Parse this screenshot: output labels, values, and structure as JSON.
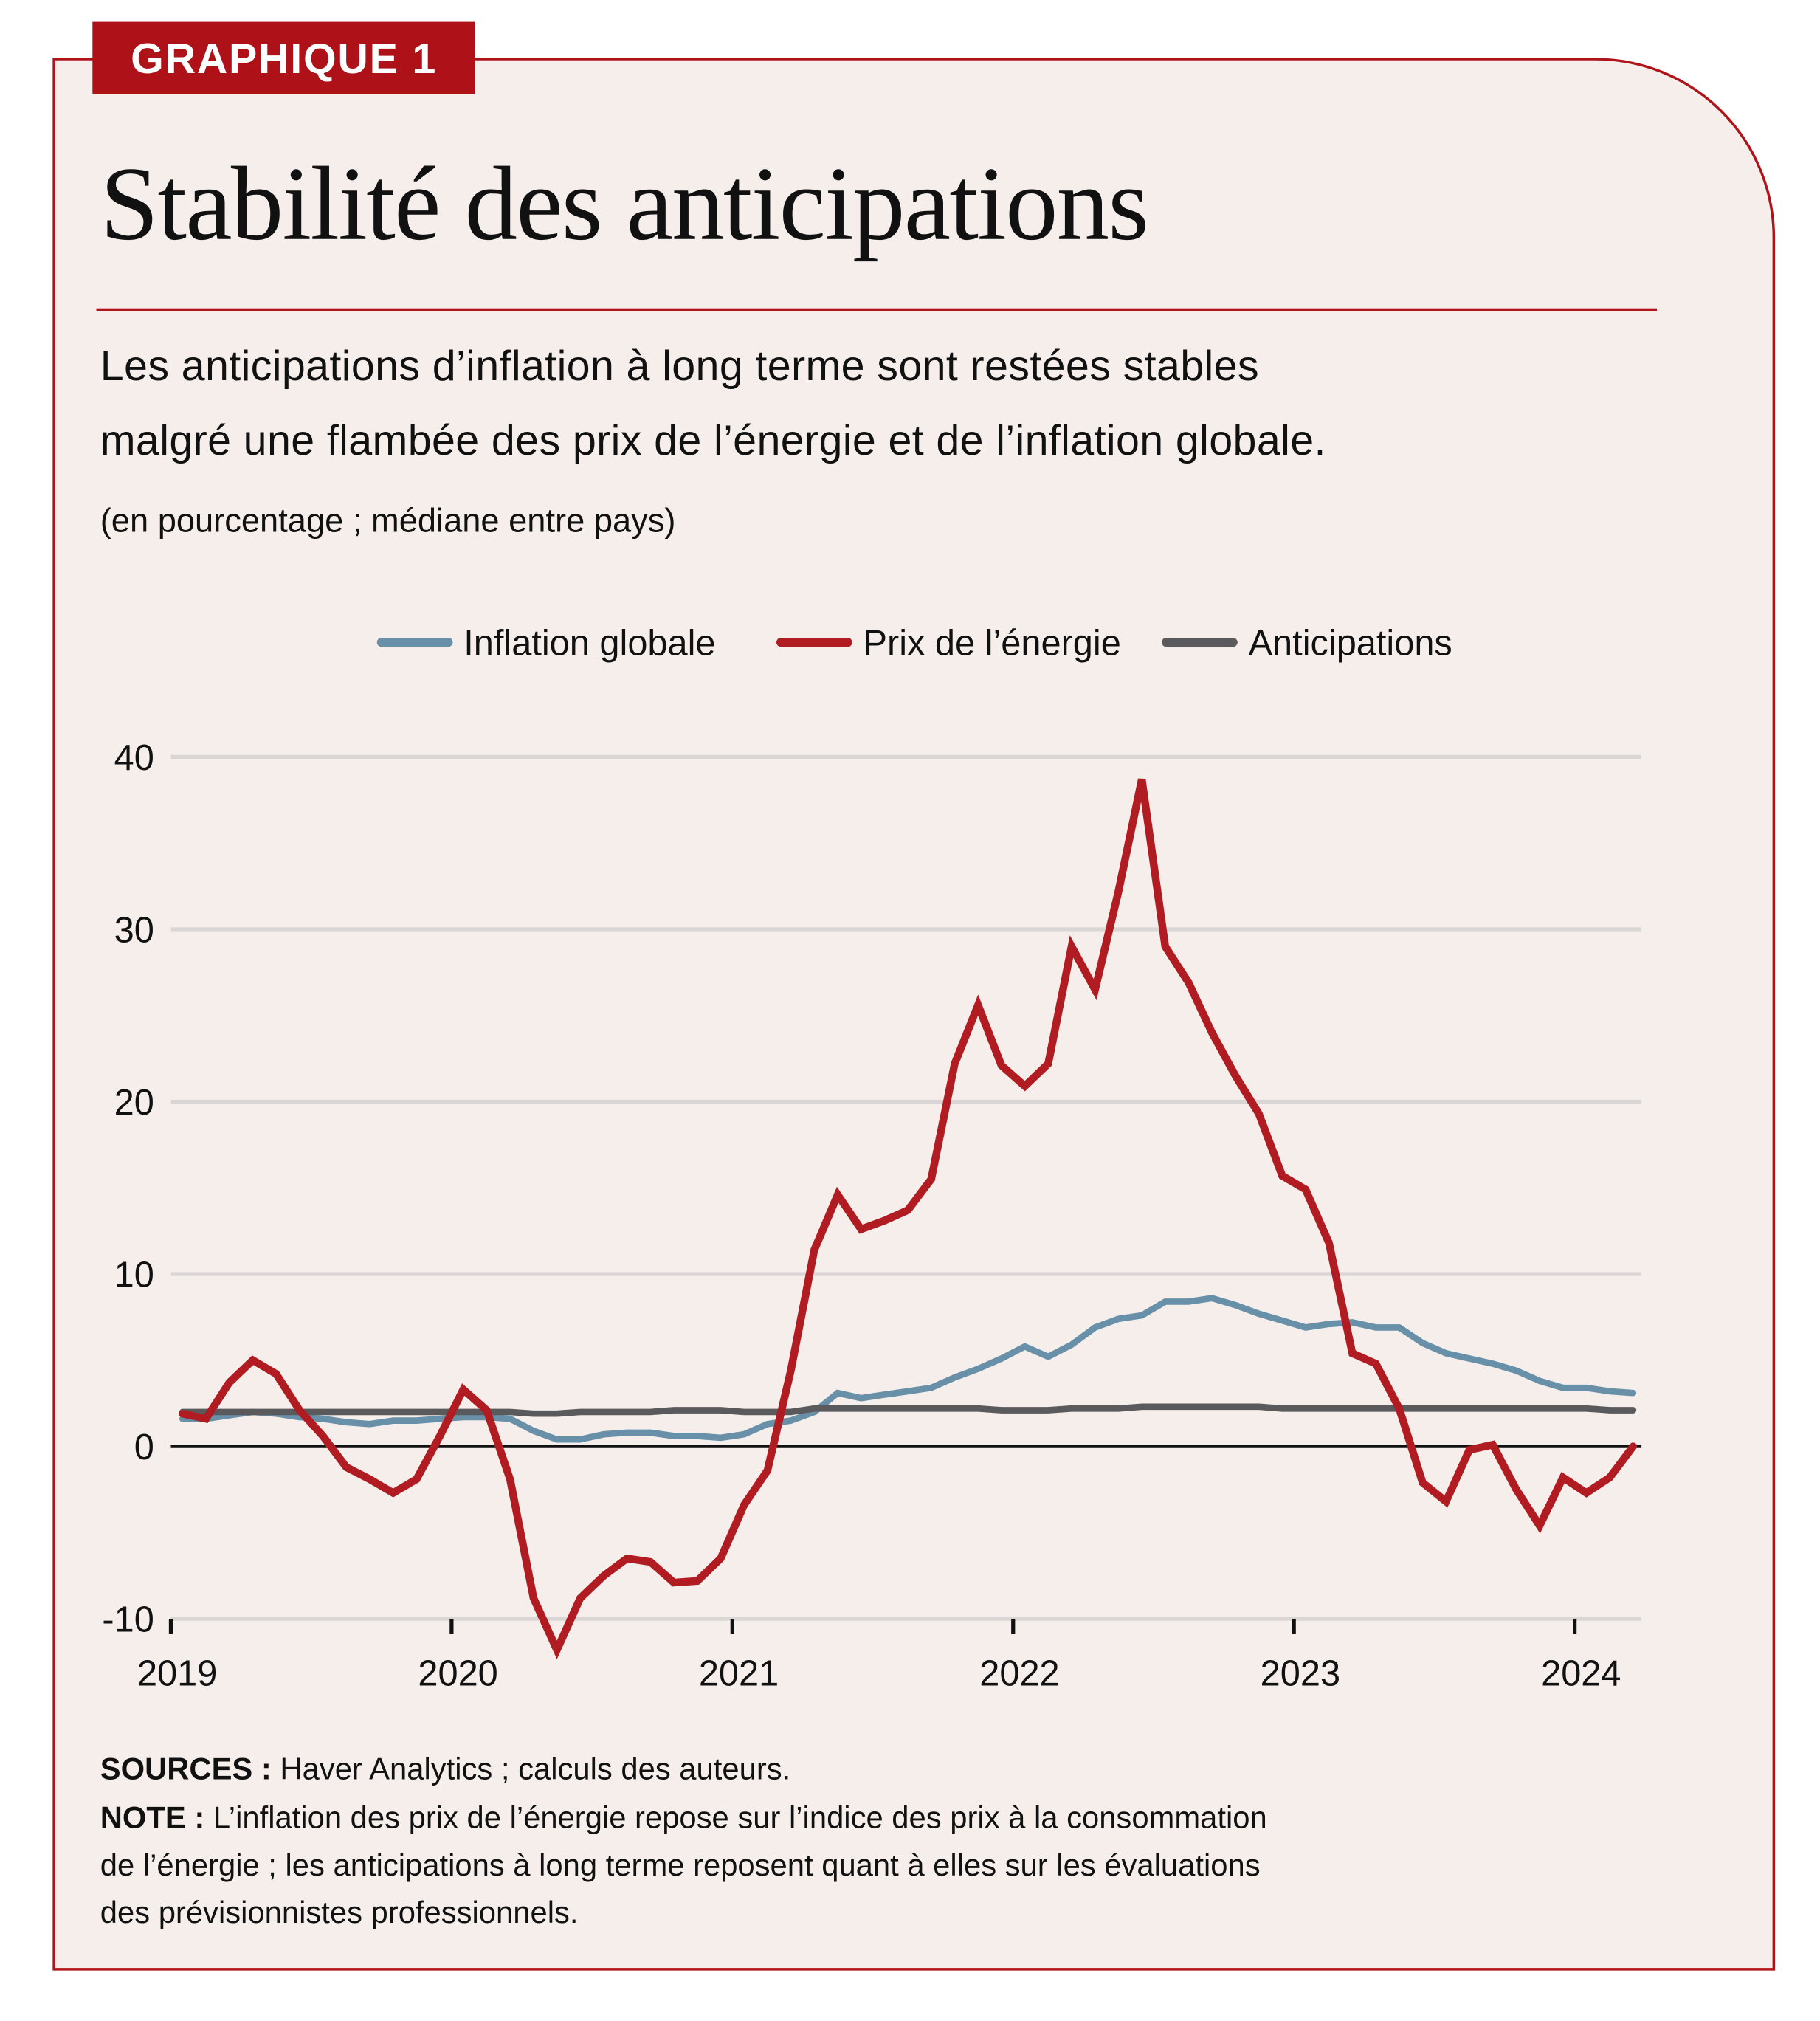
{
  "badge": "GRAPHIQUE 1",
  "title": "Stabilité des anticipations",
  "subtitle_lines": [
    "Les anticipations d’inflation à long terme sont restées stables",
    "malgré une flambée des prix de l’énergie et de l’inflation globale."
  ],
  "unit_note": "(en pourcentage ; médiane entre pays)",
  "footer": {
    "sources_label": "SOURCES :",
    "sources_text": " Haver Analytics ; calculs des auteurs.",
    "note_label": "NOTE :",
    "note_lines": [
      " L’inflation des prix de l’énergie repose sur l’indice des prix à la consommation",
      "de l’énergie ; les anticipations à long terme reposent quant à elles sur les évaluations",
      "des prévisionnistes professionnels."
    ]
  },
  "colors": {
    "accent": "#ae1118",
    "background": "#f5eeeb",
    "inflation": "#6890a8",
    "energy": "#b01c22",
    "expectations": "#5a5a5c"
  },
  "chart_data": {
    "type": "line",
    "x_frequency": "monthly",
    "x_start": "2019-01",
    "x_end": "2024-03",
    "xticks": [
      "2019",
      "2020",
      "2021",
      "2022",
      "2023",
      "2024"
    ],
    "yticks": [
      -10,
      0,
      10,
      20,
      30,
      40
    ],
    "ylim": [
      -10,
      40
    ],
    "grid": "horizontal",
    "legend": "top-center",
    "series": [
      {
        "name": "Inflation globale",
        "color": "#6890a8",
        "values": [
          1.6,
          1.6,
          1.8,
          2.0,
          1.9,
          1.7,
          1.6,
          1.4,
          1.3,
          1.5,
          1.5,
          1.6,
          1.7,
          1.7,
          1.6,
          0.9,
          0.4,
          0.4,
          0.7,
          0.8,
          0.8,
          0.6,
          0.6,
          0.5,
          0.7,
          1.3,
          1.5,
          2.0,
          3.1,
          2.8,
          3.0,
          3.2,
          3.4,
          4.0,
          4.5,
          5.1,
          5.8,
          5.2,
          5.9,
          6.9,
          7.4,
          7.6,
          8.4,
          8.4,
          8.6,
          8.2,
          7.7,
          7.3,
          6.9,
          7.1,
          7.2,
          6.9,
          6.9,
          6.0,
          5.4,
          5.1,
          4.8,
          4.4,
          3.8,
          3.4,
          3.4,
          3.2,
          3.1
        ]
      },
      {
        "name": "Prix de l’énergie",
        "color": "#b01c22",
        "values": [
          1.9,
          1.6,
          3.7,
          5.0,
          4.2,
          2.1,
          0.6,
          -1.2,
          -1.9,
          -2.7,
          -1.9,
          0.6,
          3.3,
          2.1,
          -1.9,
          -8.8,
          -11.8,
          -8.8,
          -7.5,
          -6.5,
          -6.7,
          -7.9,
          -7.8,
          -6.5,
          -3.4,
          -1.4,
          4.4,
          11.4,
          14.6,
          12.6,
          13.1,
          13.7,
          15.5,
          22.2,
          25.6,
          22.1,
          20.9,
          22.2,
          29.0,
          26.5,
          32.2,
          38.7,
          29.0,
          26.9,
          24.0,
          21.5,
          19.3,
          15.7,
          14.9,
          11.8,
          5.4,
          4.8,
          2.2,
          -2.1,
          -3.2,
          -0.2,
          0.1,
          -2.5,
          -4.6,
          -1.8,
          -2.7,
          -1.8,
          0.0
        ]
      },
      {
        "name": "Anticipations",
        "color": "#5a5a5c",
        "values": [
          2.0,
          2.0,
          2.0,
          2.0,
          2.0,
          2.0,
          2.0,
          2.0,
          2.0,
          2.0,
          2.0,
          2.0,
          2.0,
          2.0,
          2.0,
          1.9,
          1.9,
          2.0,
          2.0,
          2.0,
          2.0,
          2.1,
          2.1,
          2.1,
          2.0,
          2.0,
          2.0,
          2.2,
          2.2,
          2.2,
          2.2,
          2.2,
          2.2,
          2.2,
          2.2,
          2.1,
          2.1,
          2.1,
          2.2,
          2.2,
          2.2,
          2.3,
          2.3,
          2.3,
          2.3,
          2.3,
          2.3,
          2.2,
          2.2,
          2.2,
          2.2,
          2.2,
          2.2,
          2.2,
          2.2,
          2.2,
          2.2,
          2.2,
          2.2,
          2.2,
          2.2,
          2.1,
          2.1
        ]
      }
    ]
  }
}
